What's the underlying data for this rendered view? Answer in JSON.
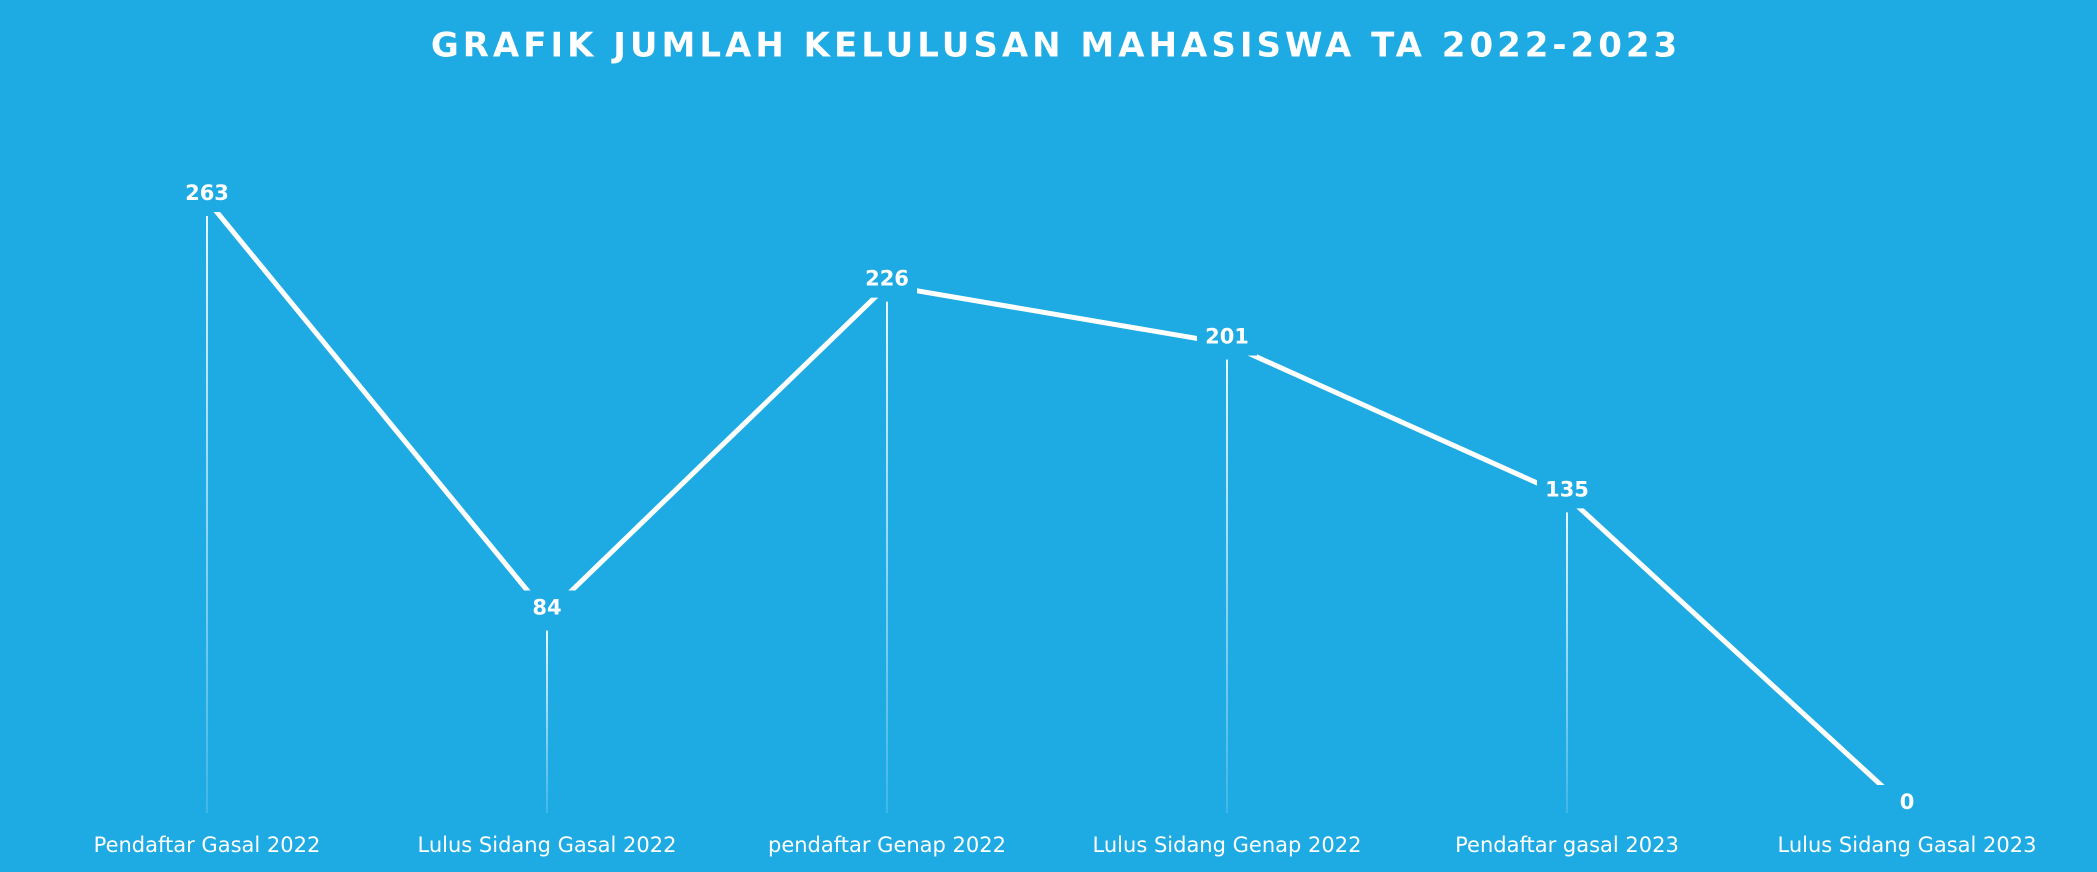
{
  "chart_data": {
    "type": "line",
    "title": "GRAFIK JUMLAH KELULUSAN MAHASISWA TA 2022-2023",
    "categories": [
      "Pendaftar Gasal 2022",
      "Lulus Sidang Gasal 2022",
      "pendaftar Genap 2022",
      "Lulus Sidang Genap 2022",
      "Pendaftar gasal 2023",
      "Lulus Sidang Gasal 2023"
    ],
    "values": [
      263,
      84,
      226,
      201,
      135,
      0
    ],
    "color": "#ffffff"
  }
}
